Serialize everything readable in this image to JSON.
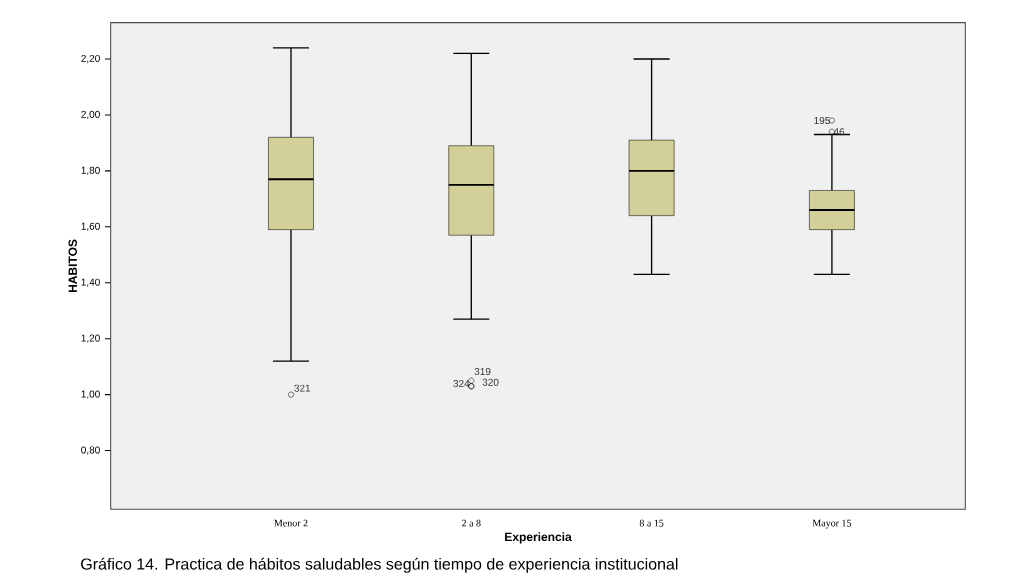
{
  "chart_data": {
    "type": "box",
    "xlabel": "Experiencia",
    "ylabel": "HABITOS",
    "categories": [
      "Menor 2",
      "2 a 8",
      "8 a 15",
      "Mayor 15"
    ],
    "color": "#d3cf98",
    "boxes": [
      {
        "low": 1.12,
        "q1": 1.59,
        "median": 1.77,
        "q3": 1.92,
        "high": 2.24,
        "outliers": [
          1.0
        ]
      },
      {
        "low": 1.27,
        "q1": 1.57,
        "median": 1.75,
        "q3": 1.89,
        "high": 2.22,
        "outliers": [
          1.05,
          1.03,
          1.03
        ]
      },
      {
        "low": 1.43,
        "q1": 1.64,
        "median": 1.8,
        "q3": 1.91,
        "high": 2.2
      },
      {
        "low": 1.43,
        "q1": 1.59,
        "median": 1.66,
        "q3": 1.73,
        "high": 1.93,
        "outliers": [
          1.98,
          1.94
        ]
      }
    ],
    "ylim": [
      0.59,
      2.33
    ],
    "yticks": [
      {
        "value": 0.8,
        "label": "0,80"
      },
      {
        "value": 1.0,
        "label": "1,00"
      },
      {
        "value": 1.2,
        "label": "1,20"
      },
      {
        "value": 1.4,
        "label": "1,40"
      },
      {
        "value": 1.6,
        "label": "1,60"
      },
      {
        "value": 1.8,
        "label": "1,80"
      },
      {
        "value": 2.0,
        "label": "2,00"
      },
      {
        "value": 2.2,
        "label": "2,20"
      }
    ],
    "annotations": [
      "321",
      "319",
      "324",
      "320",
      "195",
      "46",
      "Gráfico  14. Practica de hábitos saludables según tiempo de experiencia institucional"
    ]
  }
}
